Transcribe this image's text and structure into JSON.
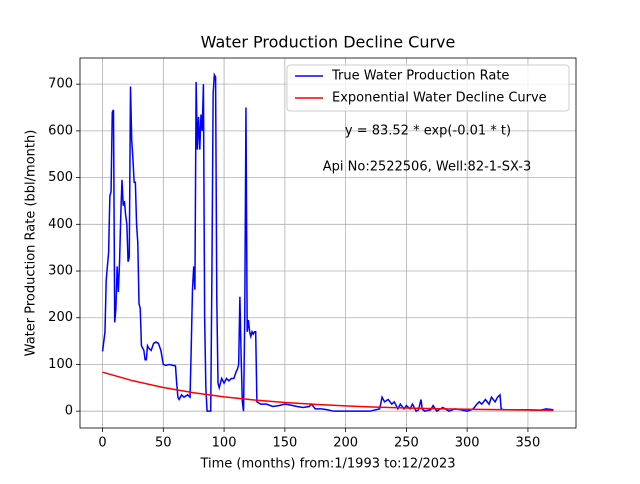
{
  "chart_data": {
    "type": "line",
    "title": "Water Production Decline Curve",
    "xlabel": "Time (months) from:1/1993 to:12/2023",
    "ylabel": "Water Production Rate (bbl/month)",
    "annotations": [
      "y = 83.52 * exp(-0.01 * t)",
      "Api No:2522506, Well:82-1-SX-3"
    ],
    "xlim": [
      -18.55,
      389.55
    ],
    "ylim": [
      -36,
      756
    ],
    "xticks": [
      0,
      50,
      100,
      150,
      200,
      250,
      300,
      350
    ],
    "yticks": [
      0,
      100,
      200,
      300,
      400,
      500,
      600,
      700
    ],
    "grid": true,
    "legend": "upper right",
    "series": [
      {
        "name": "True Water Production Rate",
        "color": "#0000ff",
        "x": [
          0,
          2,
          3,
          5,
          6,
          7,
          8,
          9,
          10,
          11,
          12,
          13,
          14,
          15,
          16,
          17,
          18,
          19,
          20,
          21,
          22,
          23,
          24,
          25,
          26,
          27,
          28,
          29,
          30,
          31,
          32,
          34,
          35,
          36,
          37,
          38,
          40,
          42,
          44,
          46,
          48,
          50,
          52,
          55,
          60,
          61,
          62,
          63,
          65,
          67,
          70,
          72,
          73,
          74,
          75,
          76,
          77,
          78,
          79,
          80,
          81,
          82,
          83,
          84,
          85,
          86,
          88,
          89,
          90,
          91,
          92,
          93,
          94,
          95,
          96,
          98,
          100,
          102,
          104,
          106,
          108,
          110,
          111,
          112,
          113,
          114,
          115,
          116,
          117,
          118,
          119,
          120,
          121,
          122,
          123,
          124,
          125,
          126,
          127,
          130,
          135,
          140,
          145,
          150,
          155,
          160,
          165,
          170,
          172,
          175,
          180,
          185,
          190,
          200,
          210,
          220,
          228,
          230,
          232,
          235,
          238,
          240,
          243,
          245,
          248,
          250,
          253,
          255,
          258,
          260,
          262,
          263,
          265,
          270,
          272,
          275,
          278,
          280,
          285,
          290,
          295,
          300,
          305,
          308,
          310,
          312,
          315,
          318,
          320,
          323,
          325,
          327,
          328,
          330,
          340,
          350,
          360,
          365,
          371
        ],
        "values": [
          128,
          170,
          280,
          340,
          460,
          470,
          640,
          645,
          190,
          220,
          310,
          255,
          320,
          420,
          495,
          440,
          450,
          420,
          400,
          320,
          330,
          695,
          580,
          540,
          490,
          490,
          400,
          360,
          230,
          220,
          140,
          130,
          110,
          110,
          140,
          135,
          130,
          145,
          148,
          145,
          130,
          100,
          98,
          100,
          97,
          60,
          30,
          25,
          35,
          30,
          35,
          30,
          140,
          260,
          310,
          260,
          705,
          560,
          630,
          560,
          635,
          600,
          700,
          200,
          50,
          0,
          0,
          0,
          300,
          680,
          720,
          715,
          240,
          60,
          50,
          70,
          60,
          70,
          65,
          70,
          70,
          85,
          90,
          100,
          245,
          120,
          20,
          0,
          200,
          650,
          170,
          195,
          170,
          160,
          170,
          165,
          170,
          170,
          20,
          15,
          15,
          10,
          12,
          15,
          13,
          10,
          8,
          10,
          15,
          5,
          5,
          3,
          0,
          0,
          0,
          0,
          5,
          30,
          20,
          25,
          15,
          20,
          5,
          15,
          5,
          12,
          5,
          15,
          0,
          3,
          25,
          5,
          0,
          3,
          12,
          0,
          5,
          8,
          0,
          5,
          3,
          0,
          5,
          15,
          20,
          15,
          25,
          15,
          30,
          20,
          30,
          35,
          5,
          3,
          3,
          3,
          2,
          5,
          3
        ]
      },
      {
        "name": "Exponential Water Decline Curve",
        "color": "#ff0000",
        "x": [
          0,
          25,
          50,
          75,
          100,
          125,
          150,
          175,
          200,
          225,
          250,
          275,
          300,
          325,
          350,
          371
        ],
        "values": [
          83.52,
          65.05,
          50.66,
          39.45,
          30.73,
          23.93,
          18.64,
          14.52,
          11.3,
          8.8,
          6.86,
          5.34,
          4.16,
          3.24,
          2.52,
          2.05
        ]
      }
    ]
  }
}
